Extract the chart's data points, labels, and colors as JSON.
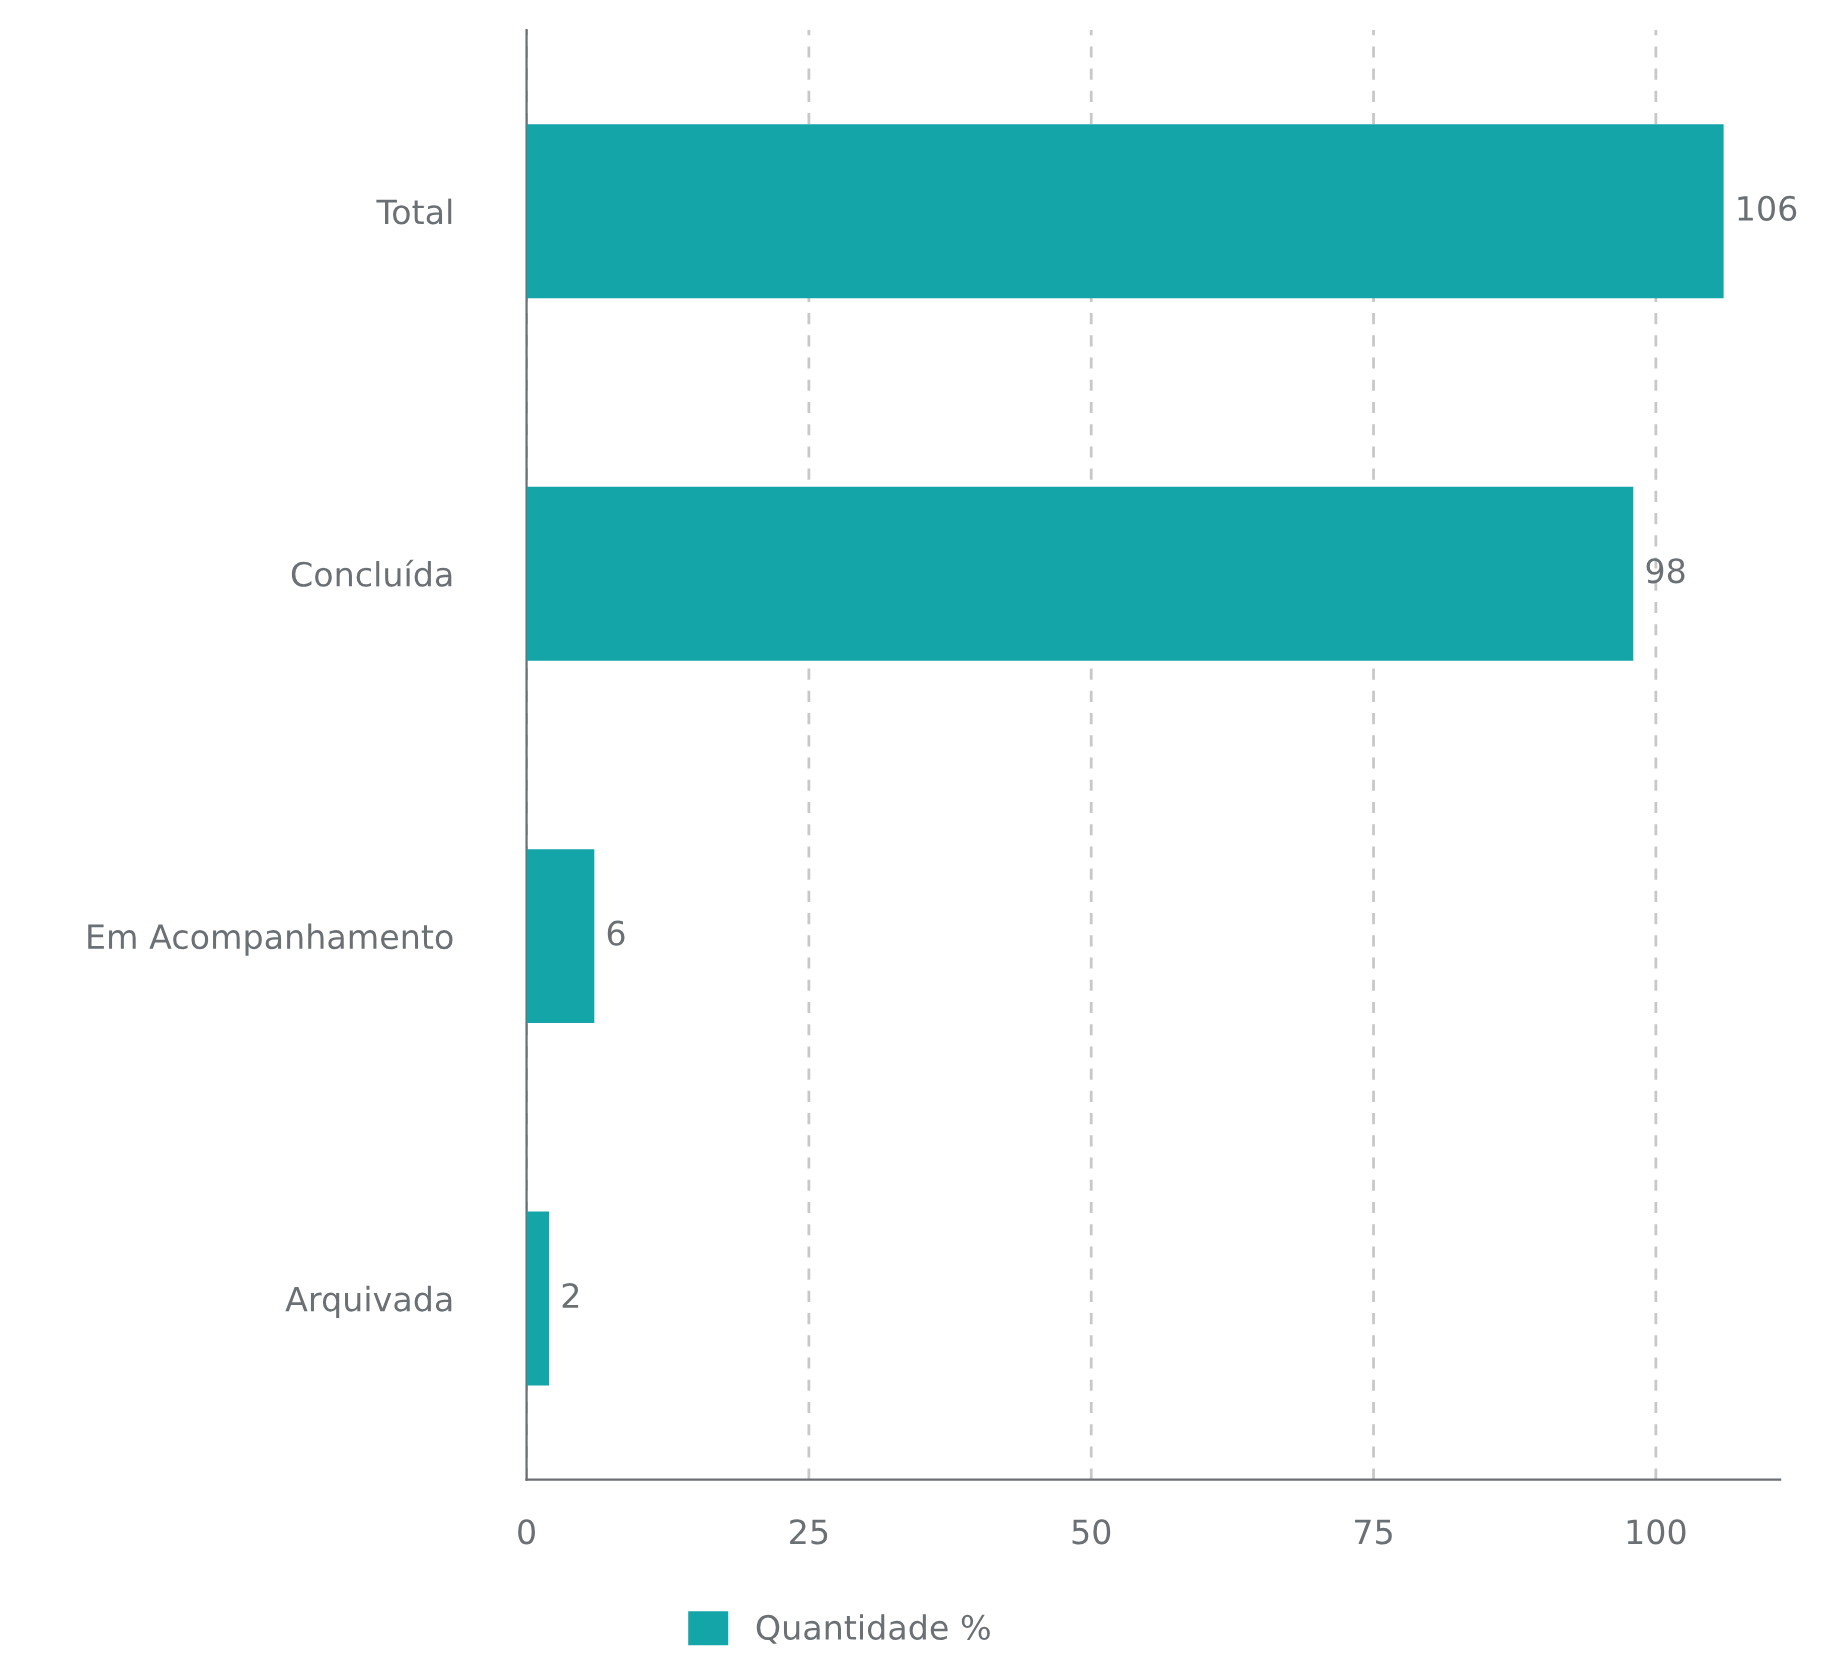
{
  "chart_data": {
    "type": "bar",
    "orientation": "horizontal",
    "categories": [
      "Total",
      "Concluída",
      "Em Acompanhamento",
      "Arquivada"
    ],
    "series": [
      {
        "name": "Quantidade %",
        "color": "#14a5a8",
        "values": [
          106,
          98,
          6,
          2
        ]
      }
    ],
    "xlim": [
      0,
      111
    ],
    "xticks": [
      0,
      25,
      50,
      75,
      100
    ],
    "grid": "x",
    "data_labels": true,
    "legend": "bottom"
  }
}
